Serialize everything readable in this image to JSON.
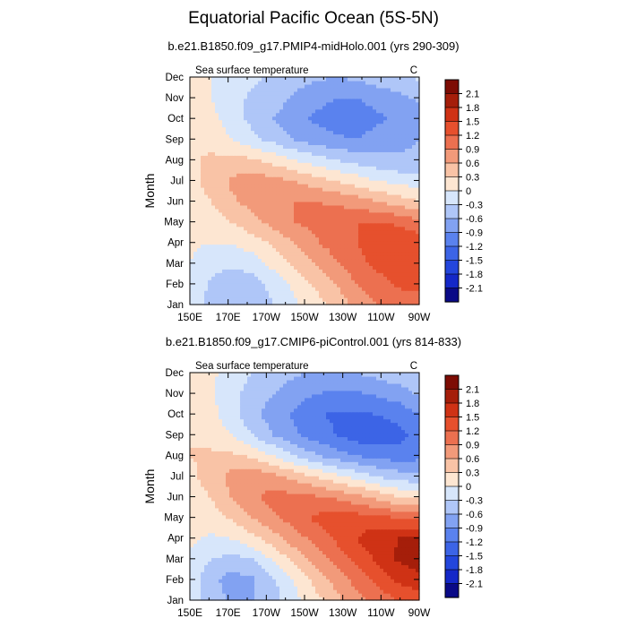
{
  "figure": {
    "title": "Equatorial Pacific Ocean (5S-5N)"
  },
  "colors": {
    "levels": [
      -2.1,
      -1.8,
      -1.5,
      -1.2,
      -0.9,
      -0.6,
      -0.3,
      0,
      0.3,
      0.6,
      0.9,
      1.2,
      1.5,
      1.8,
      2.1
    ],
    "palette": [
      "#0a0a87",
      "#1428c8",
      "#2346dc",
      "#3c64e6",
      "#5a82ee",
      "#82a2f2",
      "#afc6f8",
      "#d7e6fb",
      "#fde6d2",
      "#f9c3a6",
      "#f29a7a",
      "#ec7050",
      "#e6502d",
      "#cf3215",
      "#a51e0a",
      "#7d0c04"
    ]
  },
  "chart_data": [
    {
      "type": "heatmap",
      "title": "b.e21.B1850.f09_g17.PMIP4-midHolo.001 (yrs 290-309)",
      "left_label": "Sea surface temperature",
      "right_label": "C",
      "ylabel": "Month",
      "xticks": [
        "150E",
        "170E",
        "170W",
        "150W",
        "130W",
        "110W",
        "90W"
      ],
      "yticks": [
        "Jan",
        "Feb",
        "Mar",
        "Apr",
        "May",
        "Jun",
        "Jul",
        "Aug",
        "Sep",
        "Oct",
        "Nov",
        "Dec"
      ],
      "colorbar_labels": [
        "2.1",
        "1.8",
        "1.5",
        "1.2",
        "0.9",
        "0.6",
        "0.3",
        "0",
        "-0.3",
        "-0.6",
        "-0.9",
        "-1.2",
        "-1.5",
        "-1.8",
        "-2.1"
      ],
      "z": [
        [
          -0.1,
          -0.4,
          -0.6,
          -0.55,
          -0.3,
          -0.05,
          0.15,
          0.4,
          0.7,
          0.9,
          1.0,
          1.05
        ],
        [
          -0.05,
          -0.35,
          -0.5,
          -0.45,
          -0.2,
          0.05,
          0.35,
          0.6,
          0.9,
          1.05,
          1.25,
          1.3
        ],
        [
          0.0,
          -0.2,
          -0.25,
          -0.15,
          0.1,
          0.35,
          0.6,
          0.85,
          1.1,
          1.3,
          1.45,
          1.45
        ],
        [
          0.05,
          0.0,
          0.0,
          0.15,
          0.35,
          0.6,
          0.85,
          1.05,
          1.2,
          1.4,
          1.45,
          1.4
        ],
        [
          0.1,
          0.15,
          0.3,
          0.5,
          0.7,
          0.9,
          1.0,
          1.1,
          1.2,
          1.2,
          1.15,
          1.0
        ],
        [
          0.15,
          0.3,
          0.55,
          0.7,
          0.85,
          0.9,
          0.9,
          0.85,
          0.75,
          0.6,
          0.45,
          0.3
        ],
        [
          0.2,
          0.4,
          0.65,
          0.75,
          0.7,
          0.6,
          0.45,
          0.3,
          0.15,
          0.0,
          -0.1,
          -0.15
        ],
        [
          0.25,
          0.35,
          0.4,
          0.35,
          0.2,
          0.0,
          -0.15,
          -0.3,
          -0.4,
          -0.5,
          -0.55,
          -0.5
        ],
        [
          0.3,
          0.2,
          0.0,
          -0.2,
          -0.4,
          -0.6,
          -0.75,
          -0.85,
          -0.9,
          -0.8,
          -0.7,
          -0.6
        ],
        [
          0.3,
          0.1,
          -0.15,
          -0.4,
          -0.6,
          -0.8,
          -0.95,
          -1.05,
          -1.05,
          -0.95,
          -0.85,
          -0.7
        ],
        [
          0.25,
          0.0,
          -0.2,
          -0.35,
          -0.45,
          -0.65,
          -0.8,
          -0.9,
          -0.9,
          -0.8,
          -0.7,
          -0.55
        ],
        [
          0.2,
          0.0,
          -0.15,
          -0.25,
          -0.35,
          -0.45,
          -0.55,
          -0.6,
          -0.55,
          -0.45,
          -0.35,
          -0.25
        ]
      ]
    },
    {
      "type": "heatmap",
      "title": "b.e21.B1850.f09_g17.CMIP6-piControl.001 (yrs 814-833)",
      "left_label": "Sea surface temperature",
      "right_label": "C",
      "ylabel": "Month",
      "xticks": [
        "150E",
        "170E",
        "170W",
        "150W",
        "130W",
        "110W",
        "90W"
      ],
      "yticks": [
        "Jan",
        "Feb",
        "Mar",
        "Apr",
        "May",
        "Jun",
        "Jul",
        "Aug",
        "Sep",
        "Oct",
        "Nov",
        "Dec"
      ],
      "colorbar_labels": [
        "2.1",
        "1.8",
        "1.5",
        "1.2",
        "0.9",
        "0.6",
        "0.3",
        "0",
        "-0.3",
        "-0.6",
        "-0.9",
        "-1.2",
        "-1.5",
        "-1.8",
        "-2.1"
      ],
      "z": [
        [
          -0.15,
          -0.45,
          -0.65,
          -0.6,
          -0.4,
          -0.1,
          0.2,
          0.5,
          0.8,
          1.0,
          1.2,
          1.3
        ],
        [
          -0.1,
          -0.5,
          -0.75,
          -0.65,
          -0.35,
          0.0,
          0.4,
          0.7,
          1.0,
          1.3,
          1.55,
          1.7
        ],
        [
          -0.05,
          -0.3,
          -0.4,
          -0.3,
          0.05,
          0.4,
          0.75,
          1.0,
          1.3,
          1.55,
          1.85,
          2.0
        ],
        [
          0.05,
          -0.05,
          0.0,
          0.2,
          0.45,
          0.75,
          1.0,
          1.25,
          1.5,
          1.7,
          1.8,
          1.9
        ],
        [
          0.1,
          0.15,
          0.35,
          0.6,
          0.85,
          1.05,
          1.25,
          1.35,
          1.35,
          1.3,
          1.2,
          1.1
        ],
        [
          0.15,
          0.3,
          0.6,
          0.85,
          1.0,
          1.0,
          0.95,
          0.85,
          0.7,
          0.5,
          0.3,
          0.2
        ],
        [
          0.2,
          0.45,
          0.7,
          0.8,
          0.7,
          0.5,
          0.3,
          0.1,
          -0.1,
          -0.3,
          -0.45,
          -0.5
        ],
        [
          0.3,
          0.35,
          0.35,
          0.25,
          0.0,
          -0.3,
          -0.55,
          -0.75,
          -0.9,
          -1.0,
          -1.05,
          -1.0
        ],
        [
          0.3,
          0.2,
          0.0,
          -0.3,
          -0.6,
          -0.85,
          -1.05,
          -1.2,
          -1.35,
          -1.4,
          -1.3,
          -1.1
        ],
        [
          0.3,
          0.1,
          -0.2,
          -0.5,
          -0.75,
          -0.95,
          -1.15,
          -1.25,
          -1.25,
          -1.2,
          -1.1,
          -0.9
        ],
        [
          0.25,
          0.05,
          -0.2,
          -0.45,
          -0.6,
          -0.75,
          -0.9,
          -0.95,
          -0.95,
          -0.85,
          -0.75,
          -0.55
        ],
        [
          0.2,
          0.05,
          -0.1,
          -0.3,
          -0.45,
          -0.55,
          -0.65,
          -0.65,
          -0.6,
          -0.5,
          -0.4,
          -0.3
        ]
      ]
    }
  ]
}
